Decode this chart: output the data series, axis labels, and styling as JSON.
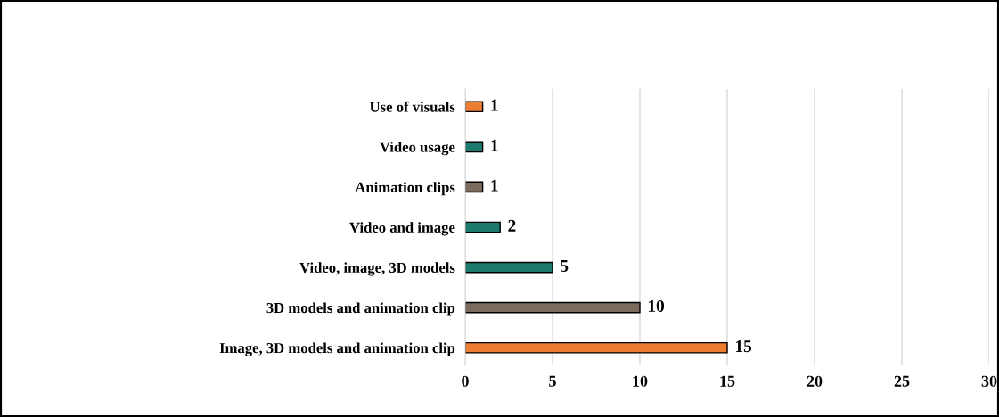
{
  "chart_data": {
    "type": "bar",
    "orientation": "horizontal",
    "categories": [
      "Use of visuals",
      "Video usage",
      "Animation clips",
      "Video and image",
      "Video, image, 3D models",
      "3D models and animation clip",
      "Image, 3D models and animation clip"
    ],
    "values": [
      1,
      1,
      1,
      2,
      5,
      10,
      15
    ],
    "colors": [
      "#ed7d31",
      "#1b7a6c",
      "#7a6b5d",
      "#1b7a6c",
      "#1b7a6c",
      "#7a6b5d",
      "#ed7d31"
    ],
    "xlim": [
      0,
      30
    ],
    "xticks": [
      0,
      5,
      10,
      15,
      20,
      25,
      30
    ],
    "grid": "x",
    "data_labels": true
  }
}
